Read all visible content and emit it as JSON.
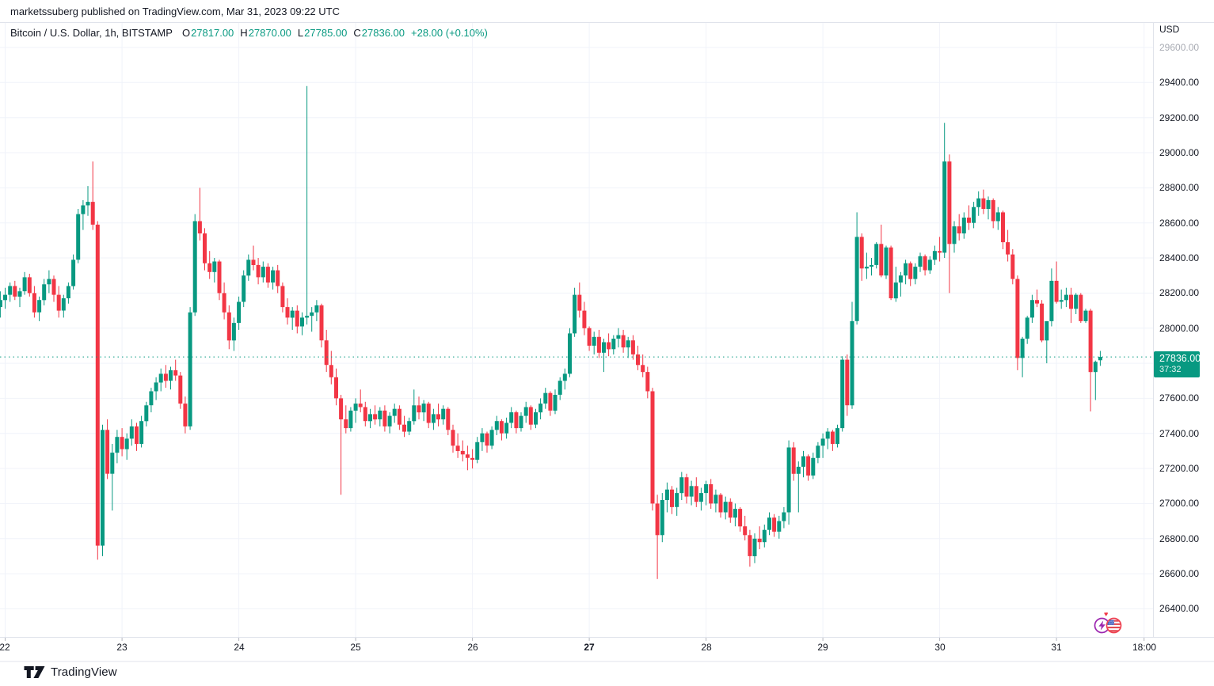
{
  "attribution": "marketssuberg published on TradingView.com, Mar 31, 2023 09:22 UTC",
  "legend": {
    "symbol": "Bitcoin / U.S. Dollar, 1h, BITSTAMP",
    "o_label": "O",
    "o_value": "27817.00",
    "h_label": "H",
    "h_value": "27870.00",
    "l_label": "L",
    "l_value": "27785.00",
    "c_label": "C",
    "c_value": "27836.00",
    "change": "+28.00 (+0.10%)"
  },
  "axis": {
    "currency": "USD",
    "price_labels": [
      "29600.00",
      "29400.00",
      "29200.00",
      "29000.00",
      "28800.00",
      "28600.00",
      "28400.00",
      "28200.00",
      "28000.00",
      "27800.00",
      "27600.00",
      "27400.00",
      "27200.00",
      "27000.00",
      "26800.00",
      "26600.00",
      "26400.00"
    ],
    "time_labels": [
      "22",
      "23",
      "24",
      "25",
      "26",
      "27",
      "28",
      "29",
      "30",
      "31",
      "18:00"
    ],
    "bold_time_label": "27"
  },
  "price_badge": {
    "price": "27836.00",
    "countdown": "37:32"
  },
  "logo": {
    "text": "TradingView"
  },
  "stickers": [
    "lightning-sticker",
    "us-flag-sticker",
    "heart-sticker"
  ],
  "colors": {
    "up": "#089981",
    "down": "#f23645",
    "grid": "#f0f3fa",
    "border": "#e0e3eb",
    "text": "#131722",
    "muted_text": "#a8abb3",
    "badge_bg": "#089981",
    "dotted_line": "#089981",
    "tick": "#b2b5be"
  },
  "chart_data": {
    "type": "candlestick",
    "title": "Bitcoin / U.S. Dollar",
    "interval": "1h",
    "exchange": "BITSTAMP",
    "x_start": "Mar 21 2023 23:00 UTC",
    "x_end": "Mar 31 2023 09:00 UTC",
    "grid": true,
    "price_axis": {
      "min": 26400,
      "max": 29600,
      "step": 200,
      "unit": "USD"
    },
    "time_axis_days": [
      "22",
      "23",
      "24",
      "25",
      "26",
      "27",
      "28",
      "29",
      "30",
      "31"
    ],
    "last_candle": {
      "open": 27817,
      "high": 27870,
      "low": 27785,
      "close": 27836,
      "change": 28.0,
      "change_pct": 0.1
    },
    "dotted_level": 27836,
    "candles": [
      [
        28120,
        28210,
        28060,
        28160
      ],
      [
        28160,
        28230,
        28110,
        28190
      ],
      [
        28190,
        28260,
        28150,
        28240
      ],
      [
        28240,
        28270,
        28160,
        28180
      ],
      [
        28180,
        28230,
        28120,
        28210
      ],
      [
        28210,
        28320,
        28190,
        28290
      ],
      [
        28290,
        28310,
        28180,
        28200
      ],
      [
        28200,
        28240,
        28060,
        28090
      ],
      [
        28090,
        28180,
        28040,
        28160
      ],
      [
        28160,
        28280,
        28130,
        28250
      ],
      [
        28250,
        28330,
        28200,
        28280
      ],
      [
        28280,
        28300,
        28150,
        28190
      ],
      [
        28190,
        28240,
        28060,
        28100
      ],
      [
        28100,
        28190,
        28060,
        28170
      ],
      [
        28170,
        28260,
        28140,
        28240
      ],
      [
        28240,
        28420,
        28220,
        28390
      ],
      [
        28390,
        28680,
        28370,
        28650
      ],
      [
        28650,
        28730,
        28560,
        28700
      ],
      [
        28700,
        28810,
        28640,
        28720
      ],
      [
        28720,
        28950,
        28560,
        28590
      ],
      [
        28590,
        28610,
        26680,
        26760
      ],
      [
        26760,
        27450,
        26700,
        27420
      ],
      [
        27420,
        27480,
        27140,
        27170
      ],
      [
        27170,
        27340,
        26960,
        27290
      ],
      [
        27290,
        27420,
        27230,
        27380
      ],
      [
        27380,
        27430,
        27270,
        27310
      ],
      [
        27310,
        27400,
        27250,
        27370
      ],
      [
        27370,
        27480,
        27330,
        27440
      ],
      [
        27440,
        27460,
        27300,
        27340
      ],
      [
        27340,
        27500,
        27320,
        27470
      ],
      [
        27470,
        27580,
        27440,
        27560
      ],
      [
        27560,
        27660,
        27520,
        27640
      ],
      [
        27640,
        27720,
        27590,
        27690
      ],
      [
        27690,
        27770,
        27640,
        27740
      ],
      [
        27740,
        27790,
        27660,
        27700
      ],
      [
        27700,
        27780,
        27650,
        27760
      ],
      [
        27760,
        27820,
        27700,
        27730
      ],
      [
        27730,
        27750,
        27540,
        27570
      ],
      [
        27570,
        27610,
        27400,
        27440
      ],
      [
        27440,
        28120,
        27420,
        28090
      ],
      [
        28090,
        28650,
        28070,
        28610
      ],
      [
        28610,
        28800,
        28500,
        28540
      ],
      [
        28540,
        28570,
        28330,
        28370
      ],
      [
        28370,
        28440,
        28280,
        28320
      ],
      [
        28320,
        28400,
        28260,
        28380
      ],
      [
        28380,
        28390,
        28160,
        28200
      ],
      [
        28200,
        28260,
        28050,
        28090
      ],
      [
        28090,
        28130,
        27880,
        27930
      ],
      [
        27930,
        28060,
        27870,
        28030
      ],
      [
        28030,
        28180,
        27990,
        28150
      ],
      [
        28150,
        28330,
        28120,
        28300
      ],
      [
        28300,
        28420,
        28270,
        28390
      ],
      [
        28390,
        28470,
        28330,
        28360
      ],
      [
        28360,
        28400,
        28250,
        28290
      ],
      [
        28290,
        28380,
        28260,
        28350
      ],
      [
        28350,
        28370,
        28230,
        28260
      ],
      [
        28260,
        28350,
        28220,
        28330
      ],
      [
        28330,
        28360,
        28200,
        28240
      ],
      [
        28240,
        28260,
        28090,
        28120
      ],
      [
        28120,
        28170,
        28020,
        28060
      ],
      [
        28060,
        28120,
        27990,
        28100
      ],
      [
        28100,
        28130,
        27970,
        28010
      ],
      [
        28010,
        28090,
        27960,
        28060
      ],
      [
        28060,
        29380,
        28020,
        28070
      ],
      [
        28070,
        28120,
        27980,
        28090
      ],
      [
        28090,
        28160,
        28040,
        28130
      ],
      [
        28130,
        28140,
        27890,
        27930
      ],
      [
        27930,
        27990,
        27750,
        27790
      ],
      [
        27790,
        27870,
        27680,
        27720
      ],
      [
        27720,
        27770,
        27560,
        27600
      ],
      [
        27600,
        27620,
        27050,
        27480
      ],
      [
        27480,
        27560,
        27400,
        27430
      ],
      [
        27430,
        27550,
        27410,
        27530
      ],
      [
        27530,
        27600,
        27460,
        27570
      ],
      [
        27570,
        27650,
        27520,
        27550
      ],
      [
        27550,
        27580,
        27440,
        27470
      ],
      [
        27470,
        27540,
        27430,
        27510
      ],
      [
        27510,
        27560,
        27450,
        27480
      ],
      [
        27480,
        27550,
        27440,
        27530
      ],
      [
        27530,
        27560,
        27410,
        27440
      ],
      [
        27440,
        27520,
        27400,
        27500
      ],
      [
        27500,
        27570,
        27460,
        27540
      ],
      [
        27540,
        27560,
        27420,
        27450
      ],
      [
        27450,
        27500,
        27380,
        27410
      ],
      [
        27410,
        27490,
        27390,
        27470
      ],
      [
        27470,
        27650,
        27450,
        27560
      ],
      [
        27560,
        27610,
        27480,
        27520
      ],
      [
        27520,
        27590,
        27470,
        27570
      ],
      [
        27570,
        27580,
        27430,
        27460
      ],
      [
        27460,
        27540,
        27420,
        27510
      ],
      [
        27510,
        27570,
        27440,
        27480
      ],
      [
        27480,
        27560,
        27450,
        27540
      ],
      [
        27540,
        27550,
        27390,
        27420
      ],
      [
        27420,
        27450,
        27290,
        27330
      ],
      [
        27330,
        27400,
        27260,
        27300
      ],
      [
        27300,
        27360,
        27240,
        27280
      ],
      [
        27280,
        27330,
        27190,
        27260
      ],
      [
        27260,
        27310,
        27200,
        27250
      ],
      [
        27250,
        27380,
        27230,
        27350
      ],
      [
        27350,
        27430,
        27300,
        27400
      ],
      [
        27400,
        27410,
        27290,
        27330
      ],
      [
        27330,
        27440,
        27310,
        27420
      ],
      [
        27420,
        27500,
        27390,
        27470
      ],
      [
        27470,
        27480,
        27360,
        27400
      ],
      [
        27400,
        27490,
        27370,
        27460
      ],
      [
        27460,
        27550,
        27430,
        27520
      ],
      [
        27520,
        27530,
        27400,
        27430
      ],
      [
        27430,
        27520,
        27410,
        27500
      ],
      [
        27500,
        27580,
        27460,
        27550
      ],
      [
        27550,
        27560,
        27420,
        27450
      ],
      [
        27450,
        27540,
        27430,
        27520
      ],
      [
        27520,
        27600,
        27480,
        27570
      ],
      [
        27570,
        27660,
        27540,
        27630
      ],
      [
        27630,
        27640,
        27500,
        27530
      ],
      [
        27530,
        27650,
        27510,
        27620
      ],
      [
        27620,
        27720,
        27590,
        27700
      ],
      [
        27700,
        27770,
        27650,
        27740
      ],
      [
        27740,
        28000,
        27720,
        27970
      ],
      [
        27970,
        28230,
        27950,
        28190
      ],
      [
        28190,
        28260,
        28060,
        28100
      ],
      [
        28100,
        28150,
        27960,
        28000
      ],
      [
        28000,
        28010,
        27870,
        27900
      ],
      [
        27900,
        27980,
        27850,
        27950
      ],
      [
        27950,
        27990,
        27830,
        27860
      ],
      [
        27860,
        27940,
        27750,
        27920
      ],
      [
        27920,
        27970,
        27840,
        27880
      ],
      [
        27880,
        27960,
        27850,
        27940
      ],
      [
        27940,
        28000,
        27890,
        27960
      ],
      [
        27960,
        27990,
        27860,
        27890
      ],
      [
        27890,
        27950,
        27830,
        27930
      ],
      [
        27930,
        27960,
        27820,
        27850
      ],
      [
        27850,
        27900,
        27760,
        27790
      ],
      [
        27790,
        27850,
        27720,
        27750
      ],
      [
        27750,
        27780,
        27600,
        27640
      ],
      [
        27640,
        27660,
        26960,
        27000
      ],
      [
        27000,
        27050,
        26570,
        26820
      ],
      [
        26820,
        27060,
        26780,
        27020
      ],
      [
        27020,
        27120,
        26950,
        27080
      ],
      [
        27080,
        27100,
        26940,
        26980
      ],
      [
        26980,
        27090,
        26930,
        27060
      ],
      [
        27060,
        27180,
        27020,
        27150
      ],
      [
        27150,
        27170,
        27000,
        27040
      ],
      [
        27040,
        27130,
        26990,
        27100
      ],
      [
        27100,
        27150,
        26980,
        27010
      ],
      [
        27010,
        27090,
        26960,
        27060
      ],
      [
        27060,
        27130,
        26990,
        27110
      ],
      [
        27110,
        27140,
        26970,
        27000
      ],
      [
        27000,
        27080,
        26950,
        27050
      ],
      [
        27050,
        27060,
        26920,
        26950
      ],
      [
        26950,
        27040,
        26910,
        27010
      ],
      [
        27010,
        27030,
        26890,
        26920
      ],
      [
        26920,
        27000,
        26870,
        26970
      ],
      [
        26970,
        26980,
        26840,
        26870
      ],
      [
        26870,
        26930,
        26790,
        26820
      ],
      [
        26820,
        26850,
        26640,
        26700
      ],
      [
        26700,
        26830,
        26660,
        26800
      ],
      [
        26800,
        26870,
        26740,
        26780
      ],
      [
        26780,
        26880,
        26750,
        26850
      ],
      [
        26850,
        26950,
        26820,
        26920
      ],
      [
        26920,
        26940,
        26810,
        26840
      ],
      [
        26840,
        26930,
        26800,
        26900
      ],
      [
        26900,
        26980,
        26860,
        26950
      ],
      [
        26950,
        27360,
        26880,
        27320
      ],
      [
        27320,
        27350,
        27130,
        27170
      ],
      [
        27170,
        27240,
        26950,
        27210
      ],
      [
        27210,
        27300,
        27150,
        27270
      ],
      [
        27270,
        27280,
        27130,
        27160
      ],
      [
        27160,
        27290,
        27140,
        27260
      ],
      [
        27260,
        27350,
        27230,
        27330
      ],
      [
        27330,
        27400,
        27260,
        27370
      ],
      [
        27370,
        27430,
        27310,
        27410
      ],
      [
        27410,
        27420,
        27300,
        27340
      ],
      [
        27340,
        27450,
        27320,
        27430
      ],
      [
        27430,
        27840,
        27410,
        27820
      ],
      [
        27820,
        27850,
        27500,
        27560
      ],
      [
        27560,
        28150,
        27540,
        28040
      ],
      [
        28040,
        28660,
        28020,
        28520
      ],
      [
        28520,
        28540,
        28270,
        28340
      ],
      [
        28340,
        28430,
        28280,
        28350
      ],
      [
        28350,
        28400,
        28300,
        28360
      ],
      [
        28360,
        28490,
        28340,
        28480
      ],
      [
        28480,
        28590,
        28290,
        28300
      ],
      [
        28300,
        28470,
        28280,
        28460
      ],
      [
        28460,
        28470,
        28160,
        28170
      ],
      [
        28170,
        28350,
        28150,
        28260
      ],
      [
        28260,
        28320,
        28180,
        28300
      ],
      [
        28300,
        28390,
        28250,
        28370
      ],
      [
        28370,
        28380,
        28240,
        28280
      ],
      [
        28280,
        28370,
        28250,
        28350
      ],
      [
        28350,
        28430,
        28320,
        28410
      ],
      [
        28410,
        28420,
        28300,
        28330
      ],
      [
        28330,
        28410,
        28310,
        28390
      ],
      [
        28390,
        28470,
        28360,
        28440
      ],
      [
        28440,
        28520,
        28380,
        28430
      ],
      [
        28430,
        29170,
        28400,
        28950
      ],
      [
        28950,
        28990,
        28200,
        28480
      ],
      [
        28480,
        28610,
        28430,
        28580
      ],
      [
        28580,
        28650,
        28500,
        28540
      ],
      [
        28540,
        28660,
        28510,
        28630
      ],
      [
        28630,
        28700,
        28560,
        28600
      ],
      [
        28600,
        28720,
        28570,
        28690
      ],
      [
        28690,
        28780,
        28640,
        28740
      ],
      [
        28740,
        28790,
        28650,
        28680
      ],
      [
        28680,
        28750,
        28620,
        28730
      ],
      [
        28730,
        28740,
        28570,
        28610
      ],
      [
        28610,
        28690,
        28560,
        28660
      ],
      [
        28660,
        28670,
        28450,
        28490
      ],
      [
        28490,
        28560,
        28380,
        28420
      ],
      [
        28420,
        28450,
        28250,
        28280
      ],
      [
        28280,
        28300,
        27760,
        27830
      ],
      [
        27830,
        27950,
        27720,
        27940
      ],
      [
        27940,
        28070,
        27910,
        28060
      ],
      [
        28060,
        28190,
        28030,
        28160
      ],
      [
        28160,
        28220,
        28120,
        28140
      ],
      [
        28140,
        28160,
        27920,
        27930
      ],
      [
        27930,
        28040,
        27800,
        28040
      ],
      [
        28040,
        28340,
        28010,
        28270
      ],
      [
        28270,
        28380,
        28140,
        28150
      ],
      [
        28150,
        28220,
        28110,
        28160
      ],
      [
        28160,
        28230,
        28120,
        28190
      ],
      [
        28190,
        28230,
        28030,
        28110
      ],
      [
        28110,
        28200,
        28080,
        28190
      ],
      [
        28190,
        28200,
        28030,
        28040
      ],
      [
        28040,
        28110,
        28030,
        28100
      ],
      [
        28100,
        28110,
        27525,
        27750
      ],
      [
        27750,
        27815,
        27590,
        27808
      ],
      [
        27817,
        27870,
        27785,
        27836
      ]
    ]
  }
}
